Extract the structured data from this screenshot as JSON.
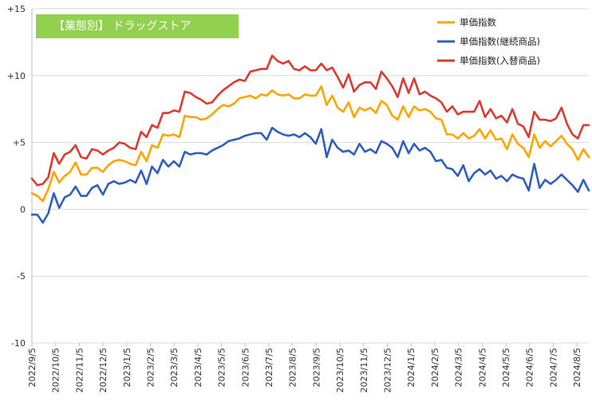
{
  "chart_data": {
    "type": "line",
    "title": "【業態別】 ドラッグストア",
    "xlabel": "",
    "ylabel": "",
    "ylim": [
      -10,
      15
    ],
    "yticks": [
      15,
      10,
      5,
      0,
      -5,
      -10
    ],
    "ytick_labels": [
      "+15",
      "+10",
      "+5",
      "0",
      "-5",
      "-10"
    ],
    "grid": true,
    "legend_position": "top-right",
    "x_tick_labels": [
      "2022/9/5",
      "2022/10/5",
      "2022/11/5",
      "2022/12/5",
      "2023/1/5",
      "2023/2/5",
      "2023/3/5",
      "2023/4/5",
      "2023/5/5",
      "2023/6/5",
      "2023/7/5",
      "2023/8/5",
      "2023/9/5",
      "2023/10/5",
      "2023/11/5",
      "2023/12/5",
      "2024/1/5",
      "2024/2/5",
      "2024/3/5",
      "2024/4/5",
      "2024/5/5",
      "2024/6/5",
      "2024/7/5",
      "2024/8/5"
    ],
    "series": [
      {
        "name": "単価指数",
        "color": "#ffa500",
        "values": [
          1.2,
          1.0,
          0.6,
          1.5,
          2.8,
          2.0,
          2.5,
          2.8,
          3.5,
          2.6,
          2.6,
          3.1,
          3.1,
          2.8,
          3.3,
          3.6,
          3.7,
          3.6,
          3.4,
          3.3,
          4.3,
          3.6,
          4.8,
          4.6,
          5.6,
          5.5,
          5.6,
          5.4,
          7.0,
          6.9,
          6.9,
          6.7,
          6.8,
          7.1,
          7.5,
          7.8,
          7.7,
          7.9,
          8.3,
          8.4,
          8.5,
          8.3,
          8.6,
          8.5,
          8.9,
          8.6,
          8.5,
          8.6,
          8.3,
          8.3,
          8.6,
          8.5,
          8.5,
          9.2,
          7.8,
          8.5,
          7.6,
          7.3,
          8.0,
          6.9,
          7.6,
          7.4,
          7.6,
          7.2,
          8.1,
          7.8,
          7.0,
          6.7,
          7.7,
          6.9,
          7.7,
          7.4,
          7.5,
          7.3,
          6.8,
          6.7,
          5.6,
          5.6,
          5.3,
          5.7,
          5.3,
          5.5,
          6.0,
          5.3,
          5.9,
          5.2,
          5.3,
          4.5,
          5.6,
          4.9,
          4.6,
          3.9,
          5.6,
          4.6,
          5.1,
          4.7,
          5.1,
          5.5,
          4.9,
          4.5,
          3.7,
          4.5,
          3.9
        ]
      },
      {
        "name": "単価指数(継続商品)",
        "color": "#2e5fbf",
        "values": [
          -0.4,
          -0.4,
          -1.0,
          -0.3,
          1.2,
          0.1,
          0.9,
          1.1,
          1.7,
          1.0,
          1.0,
          1.6,
          1.8,
          1.1,
          1.9,
          2.1,
          1.9,
          2.0,
          2.2,
          2.0,
          2.9,
          1.9,
          3.2,
          2.7,
          3.7,
          3.2,
          3.6,
          3.2,
          4.3,
          4.1,
          4.2,
          4.2,
          4.1,
          4.4,
          4.6,
          4.8,
          5.1,
          5.2,
          5.3,
          5.5,
          5.6,
          5.7,
          5.7,
          5.2,
          6.1,
          5.8,
          5.6,
          5.5,
          5.6,
          5.4,
          5.7,
          5.4,
          4.9,
          6.0,
          3.9,
          5.2,
          4.6,
          4.3,
          4.4,
          4.1,
          4.9,
          4.3,
          4.5,
          4.2,
          5.1,
          4.9,
          4.6,
          3.9,
          5.1,
          4.2,
          4.9,
          4.4,
          4.6,
          4.3,
          3.6,
          3.7,
          3.1,
          3.0,
          2.5,
          3.3,
          2.1,
          2.7,
          3.0,
          2.6,
          2.9,
          2.3,
          2.5,
          2.1,
          2.6,
          2.4,
          2.3,
          1.4,
          3.4,
          1.6,
          2.2,
          1.9,
          2.2,
          2.6,
          2.2,
          1.8,
          1.3,
          2.2,
          1.4
        ]
      },
      {
        "name": "単価指数(入替商品)",
        "color": "#e03a2f",
        "values": [
          2.3,
          1.8,
          1.9,
          2.4,
          4.2,
          3.4,
          4.1,
          4.3,
          4.8,
          3.9,
          3.8,
          4.5,
          4.4,
          4.1,
          4.4,
          4.6,
          5.0,
          4.9,
          4.6,
          4.5,
          5.8,
          5.4,
          6.3,
          6.1,
          7.2,
          7.2,
          7.4,
          7.3,
          8.8,
          8.7,
          8.4,
          8.2,
          7.9,
          8.0,
          8.5,
          8.9,
          9.2,
          9.5,
          9.7,
          9.6,
          10.3,
          10.4,
          10.5,
          10.5,
          11.5,
          11.1,
          10.9,
          11.1,
          10.5,
          10.4,
          10.7,
          10.4,
          10.4,
          10.9,
          10.4,
          10.6,
          9.9,
          9.1,
          10.1,
          8.8,
          9.3,
          9.5,
          9.5,
          9.0,
          10.3,
          9.8,
          9.2,
          8.4,
          9.8,
          8.7,
          9.8,
          8.6,
          8.8,
          8.5,
          8.3,
          8.0,
          7.3,
          7.7,
          7.1,
          7.3,
          7.3,
          7.3,
          8.1,
          6.9,
          7.5,
          6.8,
          7.0,
          6.5,
          7.5,
          6.4,
          6.2,
          5.4,
          7.3,
          6.7,
          6.7,
          6.6,
          6.8,
          7.6,
          6.4,
          5.6,
          5.3,
          6.3,
          6.3
        ]
      }
    ]
  }
}
